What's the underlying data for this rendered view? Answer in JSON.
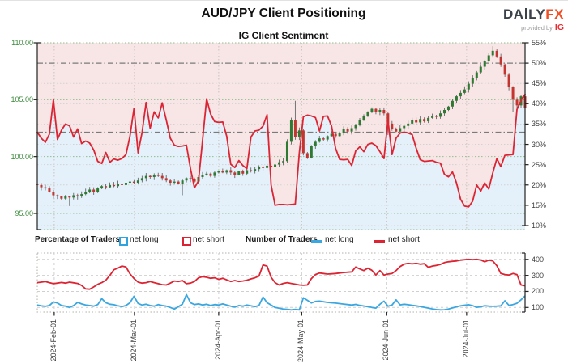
{
  "header": {
    "title": "AUD/JPY Client Positioning",
    "subtitle": "IG Client Sentiment",
    "logo": {
      "part1": "DA",
      "part2": "LY",
      "part3": "FX",
      "provided_by": "provided by",
      "ig": "IG"
    }
  },
  "legend": {
    "group1_label": "Percentage of Traders",
    "group1_net_long": "net long",
    "group1_net_short": "net short",
    "group2_label": "Number of Traders",
    "group2_net_long": "net long",
    "group2_net_short": "net short"
  },
  "colors": {
    "net_long_blue": "#3ba7e0",
    "net_short_red": "#dc2433",
    "candle_up_green": "#2f7a33",
    "candle_down_red": "#c43530",
    "area_above_pink": "#f8e6e6",
    "area_below_blue": "#e4f1fa",
    "price_axis_green": "#3a8a3a",
    "logo_fx_orange": "#f04e23",
    "logo_ig_red": "#e62e34"
  },
  "chart_data": [
    {
      "type": "candlestick+line",
      "title": "IG Client Sentiment",
      "price_axis": {
        "side": "left",
        "min": 95,
        "max": 110,
        "tick_labels": [
          "110.00",
          "105.00",
          "100.00",
          "95.00"
        ],
        "tick_values": [
          110,
          105,
          100,
          95
        ]
      },
      "pct_axis": {
        "side": "right",
        "min": 10,
        "max": 55,
        "tick_labels": [
          "55%",
          "50%",
          "45%",
          "40%",
          "35%",
          "30%",
          "25%",
          "20%",
          "15%",
          "10%"
        ],
        "tick_values": [
          55,
          50,
          45,
          40,
          35,
          30,
          25,
          20,
          15,
          10
        ]
      },
      "reference_lines_pct": [
        50,
        33
      ],
      "pct_minor_gridlines": [
        45,
        40,
        35,
        30,
        25,
        20,
        15
      ],
      "price_gridlines": [
        110,
        105,
        100,
        95
      ],
      "candles_close": [
        97.5,
        97.3,
        97.2,
        96.9,
        96.6,
        96.5,
        96.3,
        96.5,
        96.4,
        96.6,
        96.5,
        96.7,
        96.9,
        97.1,
        96.9,
        97.2,
        97.4,
        97.3,
        97.5,
        97.4,
        97.6,
        97.5,
        97.7,
        97.8,
        97.7,
        97.9,
        98.1,
        98.3,
        98.2,
        98.4,
        98.3,
        98.1,
        97.9,
        97.7,
        97.8,
        97.6,
        97.9,
        98.1,
        98.0,
        97.8,
        98.2,
        98.4,
        98.5,
        98.3,
        98.6,
        98.7,
        98.6,
        98.8,
        98.6,
        98.4,
        98.7,
        98.5,
        98.8,
        98.7,
        98.9,
        99.1,
        99.0,
        99.2,
        99.1,
        99.3,
        99.5,
        99.6,
        101.3,
        103.2,
        101.7,
        102.3,
        100.3,
        99.9,
        100.9,
        101.3,
        101.6,
        101.5,
        101.8,
        102.0,
        101.8,
        102.1,
        102.4,
        102.2,
        102.5,
        102.8,
        103.2,
        103.6,
        103.9,
        104.2,
        103.9,
        104.1,
        103.8,
        102.9,
        102.4,
        102.2,
        102.5,
        102.7,
        102.9,
        103.2,
        103.0,
        103.3,
        103.1,
        103.4,
        103.6,
        103.5,
        103.8,
        104.1,
        104.4,
        104.9,
        105.3,
        105.6,
        105.9,
        106.4,
        106.9,
        107.4,
        107.9,
        108.4,
        108.9,
        109.3,
        108.8,
        108.1,
        107.2,
        106.1,
        105.0,
        104.5,
        105.3,
        104.3
      ],
      "wick_overrides": [
        {
          "i": 8,
          "l": 95.65
        },
        {
          "i": 36,
          "l": 96.6
        },
        {
          "i": 64,
          "h": 104.9
        },
        {
          "i": 87,
          "l": 101.9
        },
        {
          "i": 113,
          "h": 109.7
        },
        {
          "i": 118,
          "l": 103.95
        }
      ],
      "net_short_pct": [
        33.0,
        31.5,
        30.5,
        32.5,
        41.0,
        31.2,
        33.5,
        35.0,
        34.6,
        31.8,
        33.8,
        30.2,
        30.8,
        30.3,
        28.6,
        25.8,
        25.3,
        28.0,
        25.6,
        26.4,
        26.1,
        26.5,
        27.5,
        32.0,
        38.9,
        27.9,
        33.0,
        40.3,
        34.0,
        38.0,
        36.5,
        40.2,
        36.0,
        31.5,
        29.8,
        29.5,
        29.6,
        29.8,
        24.0,
        19.3,
        21.0,
        31.0,
        41.2,
        37.5,
        35.6,
        35.4,
        35.5,
        32.0,
        25.1,
        24.3,
        26.0,
        24.8,
        24.0,
        31.8,
        33.3,
        33.5,
        34.5,
        37.3,
        20.0,
        15.0,
        15.2,
        15.2,
        15.1,
        15.2,
        15.3,
        27.9,
        36.8,
        37.2,
        37.0,
        36.6,
        33.3,
        36.9,
        37.0,
        34.5,
        29.0,
        26.3,
        26.2,
        26.3,
        24.8,
        28.4,
        29.4,
        28.2,
        30.0,
        30.3,
        29.7,
        28.2,
        26.5,
        36.0,
        27.5,
        31.5,
        32.8,
        33.0,
        32.8,
        32.4,
        29.0,
        26.2,
        25.8,
        25.9,
        26.0,
        25.6,
        25.4,
        22.6,
        22.0,
        23.2,
        20.5,
        16.5,
        14.8,
        14.6,
        16.0,
        20.0,
        18.5,
        20.5,
        19.0,
        23.0,
        26.5,
        24.5,
        27.3,
        27.4,
        27.5,
        38.6,
        40.8,
        42.3
      ]
    },
    {
      "type": "line",
      "count_axis": {
        "side": "right",
        "tick_labels": [
          "400",
          "300",
          "200",
          "100"
        ],
        "tick_values": [
          400,
          300,
          200,
          100
        ]
      },
      "series": [
        {
          "name": "net short",
          "color": "#dc2433",
          "values": [
            255,
            258,
            262,
            255,
            248,
            252,
            256,
            252,
            258,
            254,
            250,
            237,
            216,
            214,
            228,
            244,
            255,
            270,
            300,
            335,
            345,
            358,
            352,
            310,
            280,
            258,
            252,
            255,
            262,
            255,
            248,
            242,
            240,
            252,
            265,
            262,
            268,
            248,
            252,
            262,
            285,
            292,
            288,
            282,
            285,
            275,
            282,
            272,
            262,
            268,
            262,
            265,
            270,
            278,
            285,
            295,
            365,
            358,
            288,
            255,
            240,
            250,
            255,
            250,
            245,
            240,
            238,
            240,
            280,
            305,
            315,
            312,
            308,
            310,
            312,
            315,
            318,
            320,
            322,
            352,
            340,
            330,
            345,
            332,
            302,
            330,
            302,
            308,
            312,
            330,
            355,
            370,
            375,
            372,
            375,
            370,
            373,
            350,
            358,
            362,
            368,
            380,
            385,
            388,
            390,
            395,
            398,
            400,
            398,
            400,
            396,
            385,
            395,
            390,
            360,
            312,
            305,
            302,
            312,
            305,
            240,
            235
          ]
        },
        {
          "name": "net long",
          "color": "#3ba7e0",
          "values": [
            115,
            110,
            107,
            112,
            135,
            128,
            112,
            108,
            100,
            112,
            132,
            122,
            115,
            112,
            108,
            118,
            155,
            130,
            120,
            117,
            110,
            105,
            112,
            130,
            170,
            125,
            115,
            120,
            112,
            108,
            118,
            112,
            108,
            100,
            90,
            105,
            120,
            180,
            130,
            118,
            122,
            115,
            120,
            112,
            118,
            115,
            122,
            115,
            108,
            102,
            112,
            108,
            115,
            110,
            105,
            112,
            165,
            130,
            115,
            100,
            95,
            90,
            88,
            85,
            88,
            85,
            160,
            145,
            128,
            138,
            140,
            136,
            132,
            129,
            127,
            124,
            121,
            118,
            115,
            119,
            113,
            109,
            105,
            100,
            96,
            120,
            140,
            108,
            115,
            148,
            116,
            120,
            117,
            113,
            110,
            106,
            101,
            96,
            91,
            87,
            85,
            86,
            90,
            97,
            104,
            110,
            114,
            117,
            111,
            101,
            104,
            111,
            108,
            107,
            108,
            110,
            142,
            113,
            118,
            126,
            148,
            172
          ]
        }
      ]
    }
  ],
  "x_axis": {
    "month_labels": [
      "2024-Feb-01",
      "2024-Mar-01",
      "2024-Apr-01",
      "2024-May-01",
      "2024-Jun-01",
      "2024-Jul-01"
    ],
    "month_idx": [
      4.2,
      24.1,
      45.0,
      65.6,
      86.7,
      106.5
    ]
  }
}
